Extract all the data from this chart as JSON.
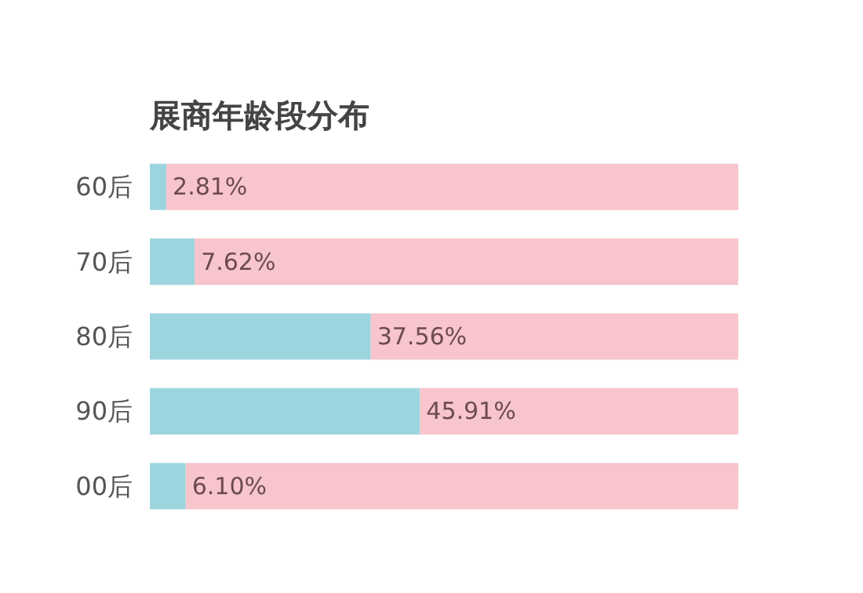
{
  "chart_data": {
    "type": "bar",
    "orientation": "horizontal",
    "stacked": true,
    "title": "展商年龄段分布",
    "categories": [
      "60后",
      "70后",
      "80后",
      "90后",
      "00后"
    ],
    "series": [
      {
        "color": "#9dd5df",
        "values": [
          2.81,
          7.62,
          37.56,
          45.91,
          6.1
        ],
        "value_labels": [
          "2.81%",
          "7.62%",
          "37.56%",
          "45.91%",
          "6.10%"
        ]
      },
      {
        "color": "#f7c5cb",
        "values": [
          97.19,
          92.38,
          62.44,
          54.09,
          93.9
        ]
      }
    ],
    "xlim": [
      0,
      100
    ],
    "tick_labels": "y",
    "grid": false
  }
}
